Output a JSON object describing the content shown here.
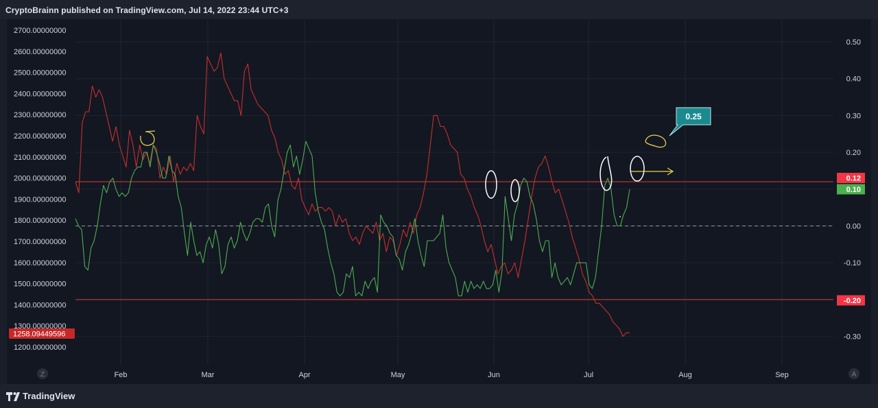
{
  "header": {
    "publish_text": "CryptoBrainn published on TradingView.com, Jul 14, 2022 23:44 UTC+3"
  },
  "footer": {
    "brand": "TradingView"
  },
  "colors": {
    "background": "#131722",
    "red_series": "#c9302c",
    "green_series": "#4caf50",
    "level_line": "#e53935",
    "annotation_white": "#ffffff",
    "annotation_yellow": "#e8d44d",
    "callout": "#1b8a8f"
  },
  "chart_data": {
    "type": "line",
    "left_axis": {
      "ticks": [
        "2700.00000000",
        "2600.00000000",
        "2500.00000000",
        "2400.00000000",
        "2300.00000000",
        "2200.00000000",
        "2100.00000000",
        "2000.00000000",
        "1900.00000000",
        "1800.00000000",
        "1700.00000000",
        "1600.00000000",
        "1500.00000000",
        "1400.00000000",
        "1300.00000000",
        "1200.00000000"
      ],
      "current_price_tag": "1258.09449596"
    },
    "right_axis": {
      "ticks": [
        "0.50",
        "0.40",
        "0.30",
        "0.20",
        "0.10",
        "0.00",
        "-0.10",
        "-0.20",
        "-0.30"
      ],
      "tags": [
        {
          "text": "0.12",
          "value": 0.12,
          "color": "#f23645"
        },
        {
          "text": "0.10",
          "value": 0.1,
          "color": "#4caf50"
        },
        {
          "text": "-0.20",
          "value": -0.2,
          "color": "#f23645"
        }
      ]
    },
    "x_axis": {
      "ticks": [
        "Feb",
        "Mar",
        "Apr",
        "May",
        "Jun",
        "Jul",
        "Aug",
        "Sep"
      ],
      "left_button": "Z",
      "right_button": "A"
    },
    "horizontal_levels": [
      0.12,
      -0.2
    ],
    "zero_line": 0.0,
    "callout": {
      "text": "0.25"
    },
    "series": [
      {
        "color": "#c9302c",
        "values": [
          0.12,
          0.09,
          0.28,
          0.31,
          0.31,
          0.38,
          0.35,
          0.37,
          0.35,
          0.31,
          0.27,
          0.23,
          0.27,
          0.22,
          0.19,
          0.16,
          0.26,
          0.22,
          0.16,
          0.22,
          0.18,
          0.2,
          0.17,
          0.22,
          0.21,
          0.13,
          0.16,
          0.14,
          0.19,
          0.12,
          0.17,
          0.14,
          0.16,
          0.15,
          0.17,
          0.15,
          0.3,
          0.27,
          0.25,
          0.46,
          0.44,
          0.42,
          0.43,
          0.47,
          0.4,
          0.38,
          0.36,
          0.34,
          0.34,
          0.3,
          0.42,
          0.44,
          0.37,
          0.35,
          0.33,
          0.32,
          0.31,
          0.3,
          0.26,
          0.24,
          0.2,
          0.18,
          0.14,
          0.15,
          0.11,
          0.1,
          0.13,
          0.07,
          0.05,
          0.03,
          0.06,
          0.04,
          0.05,
          0.05,
          0.04,
          0.05,
          0.04,
          0.0,
          0.03,
          0.01,
          0.02,
          -0.02,
          -0.04,
          -0.03,
          -0.05,
          -0.02,
          0.0,
          -0.01,
          -0.02,
          0.01,
          -0.04,
          -0.02,
          -0.07,
          -0.03,
          -0.04,
          -0.08,
          -0.05,
          -0.01,
          -0.03,
          0.01,
          -0.02,
          0.03,
          0.05,
          0.09,
          0.14,
          0.22,
          0.3,
          0.3,
          0.27,
          0.27,
          0.25,
          0.22,
          0.21,
          0.2,
          0.14,
          0.13,
          0.1,
          0.08,
          0.05,
          0.03,
          0.0,
          -0.04,
          -0.07,
          -0.05,
          -0.09,
          -0.13,
          -0.11,
          -0.1,
          -0.13,
          -0.12,
          -0.1,
          -0.14,
          -0.09,
          -0.04,
          0.02,
          0.08,
          0.13,
          0.16,
          0.17,
          0.19,
          0.16,
          0.12,
          0.09,
          0.1,
          0.07,
          0.04,
          0.01,
          -0.03,
          -0.06,
          -0.09,
          -0.13,
          -0.15,
          -0.18,
          -0.19,
          -0.21,
          -0.21,
          -0.22,
          -0.23,
          -0.24,
          -0.26,
          -0.27,
          -0.28,
          -0.3,
          -0.29,
          -0.29
        ]
      },
      {
        "color": "#4caf50",
        "values": [
          0.02,
          0.0,
          -0.01,
          -0.11,
          -0.12,
          -0.06,
          -0.04,
          0.0,
          0.06,
          0.11,
          0.09,
          0.12,
          0.13,
          0.1,
          0.08,
          0.09,
          0.08,
          0.09,
          0.13,
          0.15,
          0.16,
          0.16,
          0.2,
          0.2,
          0.16,
          0.22,
          0.2,
          0.17,
          0.13,
          0.13,
          0.19,
          0.15,
          0.14,
          0.08,
          0.05,
          -0.02,
          -0.08,
          0.01,
          -0.04,
          -0.08,
          -0.07,
          -0.1,
          -0.05,
          -0.03,
          -0.06,
          -0.01,
          -0.05,
          -0.13,
          -0.11,
          -0.05,
          -0.03,
          -0.06,
          -0.04,
          0.01,
          -0.02,
          -0.04,
          -0.02,
          0.01,
          0.02,
          0.02,
          0.01,
          0.05,
          0.06,
          0.0,
          -0.03,
          0.07,
          0.1,
          0.15,
          0.2,
          0.22,
          0.16,
          0.19,
          0.14,
          0.18,
          0.23,
          0.21,
          0.19,
          0.09,
          0.04,
          0.01,
          -0.01,
          -0.06,
          -0.1,
          -0.13,
          -0.18,
          -0.19,
          -0.18,
          -0.13,
          -0.14,
          -0.11,
          -0.19,
          -0.18,
          -0.19,
          -0.15,
          -0.17,
          -0.15,
          -0.14,
          -0.18,
          0.03,
          0.01,
          0.0,
          -0.02,
          -0.03,
          -0.08,
          -0.09,
          -0.12,
          -0.07,
          -0.05,
          -0.02,
          0.02,
          -0.04,
          -0.08,
          -0.11,
          -0.04,
          -0.04,
          -0.04,
          -0.03,
          -0.02,
          0.03,
          -0.06,
          -0.1,
          -0.12,
          -0.14,
          -0.19,
          -0.19,
          -0.15,
          -0.18,
          -0.15,
          -0.17,
          -0.16,
          -0.17,
          -0.15,
          -0.17,
          -0.17,
          -0.16,
          -0.12,
          -0.18,
          -0.12,
          0.08,
          0.02,
          -0.04,
          0.03,
          0.06,
          0.11,
          0.13,
          0.12,
          0.08,
          0.06,
          0.02,
          -0.04,
          -0.07,
          -0.04,
          -0.04,
          -0.14,
          -0.1,
          -0.14,
          -0.16,
          -0.15,
          -0.14,
          -0.16,
          -0.13,
          -0.1,
          -0.1,
          -0.1,
          -0.1,
          -0.16,
          -0.17,
          -0.14,
          -0.07,
          0.0,
          0.11,
          0.13,
          0.1,
          0.03,
          0.0,
          0.0,
          0.03,
          0.05,
          0.1
        ]
      }
    ]
  }
}
